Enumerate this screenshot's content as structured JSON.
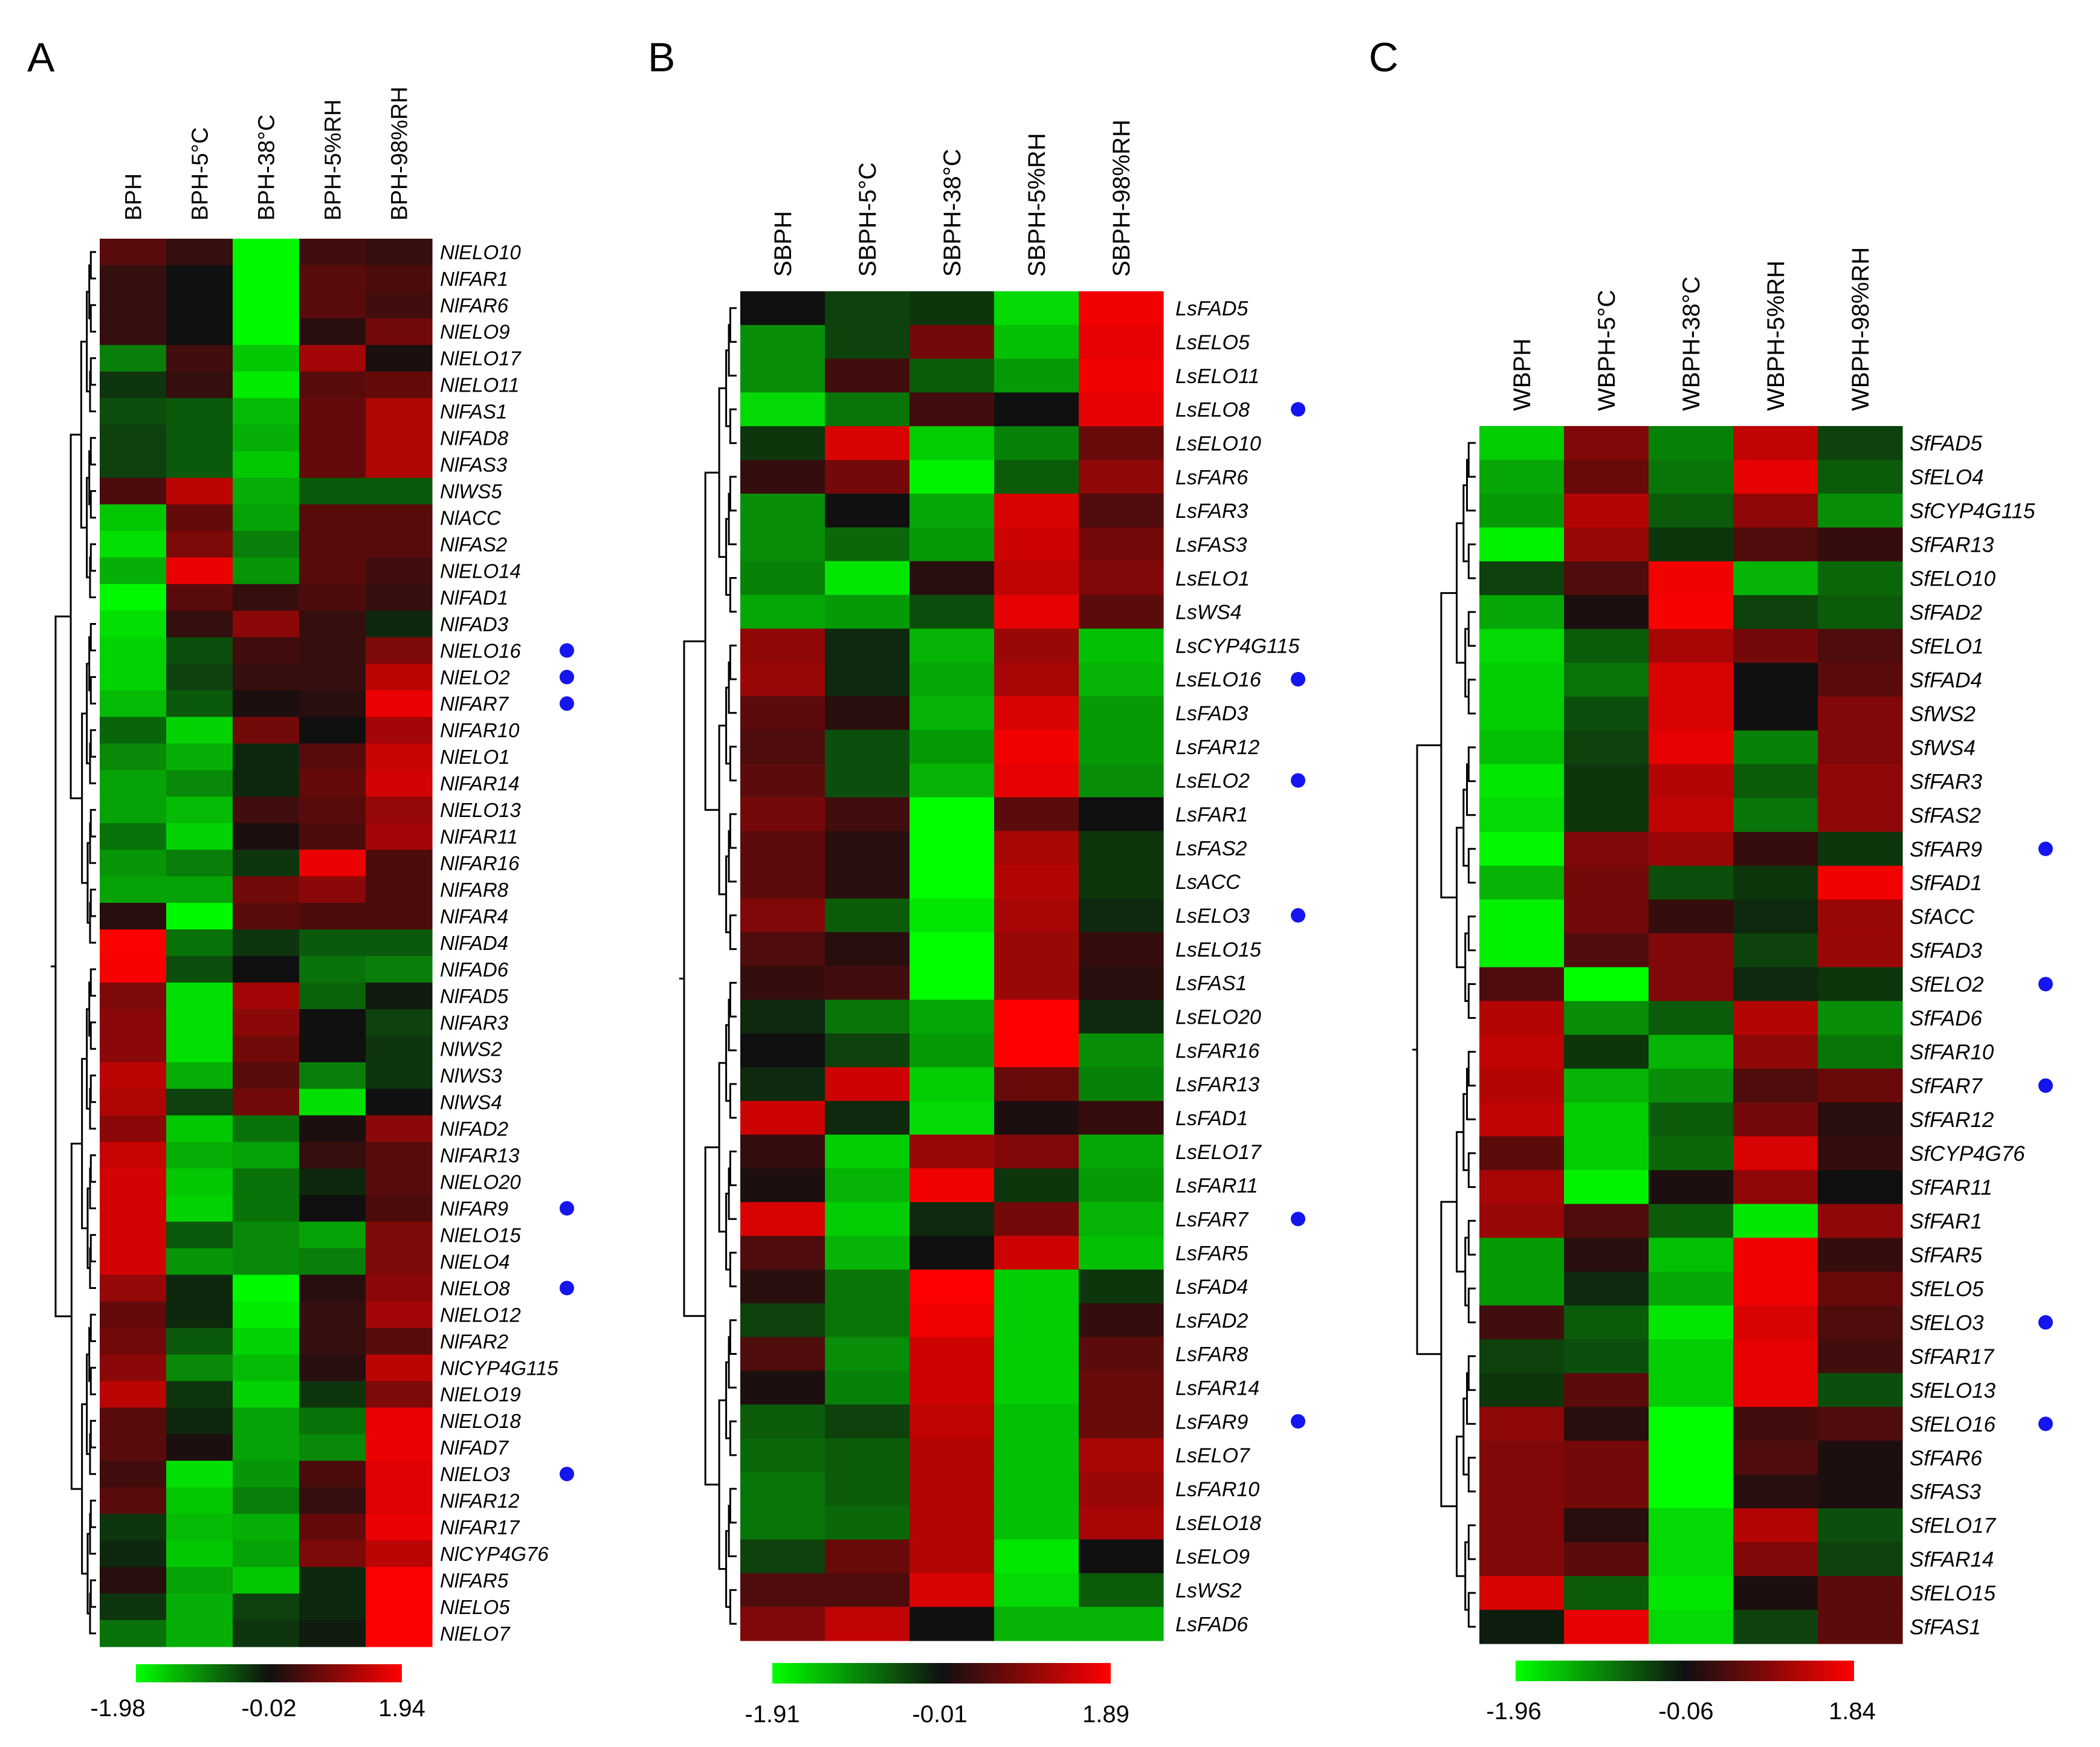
{
  "chart_data": [
    {
      "type": "heatmap",
      "panel": "A",
      "columns": [
        "BPH",
        "BPH-5°C",
        "BPH-38°C",
        "BPH-5%RH",
        "BPH-98%RH"
      ],
      "rows": [
        "NlELO10",
        "NlFAR1",
        "NlFAR6",
        "NlELO9",
        "NlELO17",
        "NlELO11",
        "NlFAS1",
        "NlFAD8",
        "NlFAS3",
        "NlWS5",
        "NlACC",
        "NlFAS2",
        "NlELO14",
        "NlFAD1",
        "NlFAD3",
        "NlELO16",
        "NlELO2",
        "NlFAR7",
        "NlFAR10",
        "NlELO1",
        "NlFAR14",
        "NlELO13",
        "NlFAR11",
        "NlFAR16",
        "NlFAR8",
        "NlFAR4",
        "NlFAD4",
        "NlFAD6",
        "NlFAD5",
        "NlFAR3",
        "NlWS2",
        "NlWS3",
        "NlWS4",
        "NlFAD2",
        "NlFAR13",
        "NlELO20",
        "NlFAR9",
        "NlELO15",
        "NlELO4",
        "NlELO8",
        "NlELO12",
        "NlFAR2",
        "NlCYP4G115",
        "NlELO19",
        "NlELO18",
        "NlFAD7",
        "NlELO3",
        "NlFAR12",
        "NlFAR17",
        "NlCYP4G76",
        "NlFAR5",
        "NlELO5",
        "NlELO7"
      ],
      "marked": [
        "NlELO16",
        "NlELO2",
        "NlFAR7",
        "NlFAR9",
        "NlELO8",
        "NlELO3"
      ],
      "values": [
        [
          0.6,
          0.3,
          -1.9,
          0.4,
          0.3
        ],
        [
          0.3,
          0.0,
          -1.9,
          0.6,
          0.5
        ],
        [
          0.3,
          0.0,
          -1.9,
          0.6,
          0.4
        ],
        [
          0.3,
          0.0,
          -1.9,
          0.2,
          0.8
        ],
        [
          -0.9,
          0.4,
          -1.5,
          1.2,
          0.1
        ],
        [
          -0.3,
          0.3,
          -1.8,
          0.6,
          0.7
        ],
        [
          -0.5,
          -0.6,
          -1.4,
          0.7,
          1.3
        ],
        [
          -0.4,
          -0.6,
          -1.3,
          0.7,
          1.3
        ],
        [
          -0.4,
          -0.6,
          -1.5,
          0.7,
          1.3
        ],
        [
          0.5,
          1.4,
          -1.3,
          -0.6,
          -0.6
        ],
        [
          -1.5,
          0.7,
          -1.2,
          0.6,
          0.6
        ],
        [
          -1.7,
          0.9,
          -0.9,
          0.6,
          0.6
        ],
        [
          -1.3,
          1.8,
          -1.1,
          0.6,
          0.4
        ],
        [
          -1.9,
          0.6,
          0.3,
          0.5,
          0.3
        ],
        [
          -1.7,
          0.3,
          1.0,
          0.3,
          -0.2
        ],
        [
          -1.6,
          -0.5,
          0.4,
          0.3,
          0.9
        ],
        [
          -1.6,
          -0.4,
          0.3,
          0.3,
          1.4
        ],
        [
          -1.4,
          -0.6,
          0.1,
          0.2,
          1.8
        ],
        [
          -0.7,
          -1.6,
          0.8,
          0.0,
          1.2
        ],
        [
          -1.0,
          -1.3,
          -0.2,
          0.6,
          1.5
        ],
        [
          -1.2,
          -1.0,
          -0.2,
          0.7,
          1.6
        ],
        [
          -1.2,
          -1.4,
          0.4,
          0.6,
          1.1
        ],
        [
          -0.8,
          -1.6,
          0.1,
          0.5,
          1.2
        ],
        [
          -1.1,
          -0.9,
          -0.3,
          1.8,
          0.5
        ],
        [
          -1.2,
          -1.2,
          0.8,
          1.0,
          0.5
        ],
        [
          0.2,
          -1.9,
          0.6,
          0.5,
          0.5
        ],
        [
          1.94,
          -0.8,
          -0.3,
          -0.6,
          -0.6
        ],
        [
          1.9,
          -0.5,
          0.0,
          -0.8,
          -0.9
        ],
        [
          0.9,
          -1.7,
          1.2,
          -0.7,
          -0.1
        ],
        [
          1.0,
          -1.7,
          1.0,
          0.0,
          -0.4
        ],
        [
          1.0,
          -1.7,
          0.8,
          0.0,
          -0.3
        ],
        [
          1.4,
          -1.3,
          0.6,
          -0.9,
          -0.3
        ],
        [
          1.3,
          -0.4,
          0.8,
          -1.7,
          0.0
        ],
        [
          1.0,
          -1.5,
          -0.8,
          0.1,
          1.0
        ],
        [
          1.5,
          -1.3,
          -1.2,
          0.3,
          0.6
        ],
        [
          1.6,
          -1.5,
          -0.8,
          -0.2,
          0.6
        ],
        [
          1.6,
          -1.6,
          -0.8,
          0.0,
          0.5
        ],
        [
          1.6,
          -0.6,
          -1.0,
          -1.2,
          0.9
        ],
        [
          1.6,
          -1.1,
          -1.0,
          -0.9,
          0.9
        ],
        [
          1.1,
          -0.2,
          -1.9,
          0.2,
          1.0
        ],
        [
          0.7,
          -0.2,
          -1.8,
          0.3,
          1.2
        ],
        [
          0.8,
          -0.6,
          -1.6,
          0.3,
          0.6
        ],
        [
          1.0,
          -1.0,
          -1.4,
          0.2,
          1.4
        ],
        [
          1.4,
          -0.3,
          -1.6,
          -0.3,
          0.9
        ],
        [
          0.6,
          -0.2,
          -1.2,
          -0.8,
          1.8
        ],
        [
          0.6,
          0.1,
          -1.2,
          -1.0,
          1.8
        ],
        [
          0.4,
          -1.7,
          -1.1,
          0.5,
          1.7
        ],
        [
          0.6,
          -1.5,
          -0.9,
          0.3,
          1.7
        ],
        [
          -0.3,
          -1.4,
          -1.3,
          0.7,
          1.8
        ],
        [
          -0.2,
          -1.5,
          -1.2,
          0.9,
          1.4
        ],
        [
          0.2,
          -1.2,
          -1.5,
          -0.2,
          1.94
        ],
        [
          -0.3,
          -1.3,
          -0.4,
          -0.2,
          1.94
        ],
        [
          -0.8,
          -1.3,
          -0.3,
          -0.1,
          1.94
        ]
      ],
      "legend": {
        "min": "-1.98",
        "mid": "-0.02",
        "max": "1.94"
      }
    },
    {
      "type": "heatmap",
      "panel": "B",
      "columns": [
        "SBPH",
        "SBPH-5°C",
        "SBPH-38°C",
        "SBPH-5%RH",
        "SBPH-98%RH"
      ],
      "rows": [
        "LsFAD5",
        "LsELO5",
        "LsELO11",
        "LsELO8",
        "LsELO10",
        "LsFAR6",
        "LsFAR3",
        "LsFAS3",
        "LsELO1",
        "LsWS4",
        "LsCYP4G115",
        "LsELO16",
        "LsFAD3",
        "LsFAR12",
        "LsELO2",
        "LsFAR1",
        "LsFAS2",
        "LsACC",
        "LsELO3",
        "LsELO15",
        "LsFAS1",
        "LsELO20",
        "LsFAR16",
        "LsFAR13",
        "LsFAD1",
        "LsELO17",
        "LsFAR11",
        "LsFAR7",
        "LsFAR5",
        "LsFAD4",
        "LsFAD2",
        "LsFAR8",
        "LsFAR14",
        "LsFAR9",
        "LsELO7",
        "LsFAR10",
        "LsELO18",
        "LsELO9",
        "LsWS2",
        "LsFAD6"
      ],
      "marked": [
        "LsELO8",
        "LsELO16",
        "LsELO2",
        "LsELO3",
        "LsFAR7",
        "LsFAR9"
      ],
      "values": [
        [
          0.0,
          -0.4,
          -0.3,
          -1.6,
          1.8
        ],
        [
          -1.0,
          -0.4,
          0.8,
          -1.4,
          1.7
        ],
        [
          -1.0,
          0.4,
          -0.6,
          -1.1,
          1.8
        ],
        [
          -1.6,
          -0.8,
          0.4,
          0.0,
          1.7
        ],
        [
          -0.3,
          1.6,
          -1.5,
          -0.9,
          0.7
        ],
        [
          0.3,
          0.8,
          -1.8,
          -0.6,
          1.0
        ],
        [
          -1.0,
          0.0,
          -1.2,
          1.6,
          0.5
        ],
        [
          -1.0,
          -0.7,
          -1.1,
          1.5,
          0.8
        ],
        [
          -0.9,
          -1.7,
          0.2,
          1.4,
          0.9
        ],
        [
          -1.2,
          -1.1,
          -0.5,
          1.7,
          0.6
        ],
        [
          1.0,
          -0.2,
          -1.3,
          1.1,
          -1.4
        ],
        [
          1.1,
          -0.2,
          -1.2,
          1.2,
          -1.3
        ],
        [
          0.6,
          0.2,
          -1.3,
          1.6,
          -1.1
        ],
        [
          0.5,
          -0.5,
          -1.1,
          1.8,
          -1.1
        ],
        [
          0.6,
          -0.5,
          -1.3,
          1.7,
          -1.0
        ],
        [
          0.8,
          0.4,
          -1.9,
          0.6,
          0.0
        ],
        [
          0.6,
          0.2,
          -1.9,
          1.2,
          -0.3
        ],
        [
          0.6,
          0.2,
          -1.9,
          1.3,
          -0.3
        ],
        [
          0.9,
          -0.6,
          -1.7,
          1.2,
          -0.2
        ],
        [
          0.5,
          0.2,
          -1.9,
          1.1,
          0.3
        ],
        [
          0.3,
          0.4,
          -1.9,
          1.1,
          0.2
        ],
        [
          -0.2,
          -0.8,
          -1.2,
          1.89,
          -0.2
        ],
        [
          0.0,
          -0.4,
          -1.1,
          1.89,
          -1.0
        ],
        [
          -0.2,
          1.5,
          -1.5,
          0.7,
          -0.9
        ],
        [
          1.5,
          -0.2,
          -1.6,
          0.1,
          0.3
        ],
        [
          0.3,
          -1.5,
          1.1,
          0.9,
          -1.2
        ],
        [
          0.1,
          -1.3,
          1.8,
          -0.3,
          -1.1
        ],
        [
          1.6,
          -1.5,
          -0.2,
          0.8,
          -1.3
        ],
        [
          0.5,
          -1.3,
          0.0,
          1.5,
          -1.4
        ],
        [
          0.2,
          -0.8,
          1.89,
          -1.5,
          -0.3
        ],
        [
          -0.4,
          -0.8,
          1.8,
          -1.5,
          0.3
        ],
        [
          0.5,
          -1.0,
          1.5,
          -1.5,
          0.6
        ],
        [
          0.1,
          -0.9,
          1.5,
          -1.5,
          0.7
        ],
        [
          -0.6,
          -0.4,
          1.4,
          -1.4,
          0.7
        ],
        [
          -0.7,
          -0.6,
          1.3,
          -1.4,
          1.2
        ],
        [
          -0.8,
          -0.6,
          1.3,
          -1.4,
          1.1
        ],
        [
          -0.8,
          -0.7,
          1.3,
          -1.4,
          1.2
        ],
        [
          -0.4,
          0.7,
          1.3,
          -1.7,
          0.0
        ],
        [
          0.5,
          0.5,
          1.6,
          -1.6,
          -0.6
        ],
        [
          0.9,
          1.4,
          0.0,
          -1.3,
          -1.3
        ]
      ],
      "legend": {
        "min": "-1.91",
        "mid": "-0.01",
        "max": "1.89"
      }
    },
    {
      "type": "heatmap",
      "panel": "C",
      "columns": [
        "WBPH",
        "WBPH-5°C",
        "WBPH-38°C",
        "WBPH-5%RH",
        "WBPH-98%RH"
      ],
      "rows": [
        "SfFAD5",
        "SfELO4",
        "SfCYP4G115",
        "SfFAR13",
        "SfELO10",
        "SfFAD2",
        "SfELO1",
        "SfFAD4",
        "SfWS2",
        "SfWS4",
        "SfFAR3",
        "SfFAS2",
        "SfFAR9",
        "SfFAD1",
        "SfACC",
        "SfFAD3",
        "SfELO2",
        "SfFAD6",
        "SfFAR10",
        "SfFAR7",
        "SfFAR12",
        "SfCYP4G76",
        "SfFAR11",
        "SfFAR1",
        "SfFAR5",
        "SfELO5",
        "SfELO3",
        "SfFAR17",
        "SfELO13",
        "SfELO16",
        "SfFAR6",
        "SfFAS3",
        "SfELO17",
        "SfFAR14",
        "SfELO15",
        "SfFAS1"
      ],
      "marked": [
        "SfFAR9",
        "SfELO2",
        "SfFAR7",
        "SfELO3",
        "SfELO16"
      ],
      "values": [
        [
          -1.5,
          0.9,
          -0.9,
          1.4,
          -0.4
        ],
        [
          -1.2,
          0.7,
          -0.8,
          1.7,
          -0.6
        ],
        [
          -1.1,
          1.3,
          -0.6,
          1.0,
          -1.0
        ],
        [
          -1.8,
          1.1,
          -0.3,
          0.5,
          0.3
        ],
        [
          -0.4,
          0.5,
          1.8,
          -1.3,
          -0.7
        ],
        [
          -1.2,
          0.1,
          1.84,
          -0.4,
          -0.6
        ],
        [
          -1.6,
          -0.6,
          1.2,
          0.8,
          0.5
        ],
        [
          -1.5,
          -0.8,
          1.6,
          0.0,
          0.6
        ],
        [
          -1.5,
          -0.5,
          1.6,
          0.0,
          0.9
        ],
        [
          -1.4,
          -0.4,
          1.7,
          -0.9,
          0.9
        ],
        [
          -1.7,
          -0.3,
          1.3,
          -0.6,
          1.0
        ],
        [
          -1.6,
          -0.3,
          1.4,
          -0.8,
          1.0
        ],
        [
          -1.84,
          0.9,
          1.1,
          0.3,
          -0.3
        ],
        [
          -1.3,
          0.8,
          -0.5,
          -0.3,
          1.8
        ],
        [
          -1.8,
          0.8,
          0.3,
          -0.2,
          1.1
        ],
        [
          -1.8,
          0.5,
          0.9,
          -0.4,
          1.1
        ],
        [
          0.5,
          -1.9,
          0.9,
          -0.2,
          -0.3
        ],
        [
          1.3,
          -1.0,
          -0.6,
          1.3,
          -1.0
        ],
        [
          1.4,
          -0.3,
          -1.3,
          1.0,
          -0.8
        ],
        [
          1.3,
          -1.3,
          -1.0,
          0.5,
          0.7
        ],
        [
          1.4,
          -1.5,
          -0.6,
          0.8,
          0.2
        ],
        [
          0.6,
          -1.5,
          -0.7,
          1.6,
          0.3
        ],
        [
          1.2,
          -1.8,
          0.1,
          1.0,
          0.0
        ],
        [
          1.1,
          0.5,
          -0.6,
          -1.7,
          1.0
        ],
        [
          -1.1,
          0.2,
          -1.4,
          1.8,
          0.3
        ],
        [
          -1.1,
          -0.2,
          -1.2,
          1.8,
          0.7
        ],
        [
          0.4,
          -0.6,
          -1.7,
          1.6,
          0.5
        ],
        [
          -0.4,
          -0.5,
          -1.5,
          1.7,
          0.4
        ],
        [
          -0.3,
          0.6,
          -1.5,
          1.7,
          -0.5
        ],
        [
          1.0,
          0.2,
          -1.96,
          0.4,
          0.5
        ],
        [
          0.9,
          0.8,
          -1.96,
          0.5,
          0.1
        ],
        [
          0.9,
          0.8,
          -1.96,
          0.2,
          0.1
        ],
        [
          0.9,
          0.2,
          -1.6,
          1.3,
          -0.5
        ],
        [
          0.9,
          0.6,
          -1.6,
          0.9,
          -0.4
        ],
        [
          1.6,
          -0.6,
          -1.7,
          0.1,
          0.6
        ],
        [
          -0.1,
          1.7,
          -1.6,
          -0.4,
          0.6
        ]
      ],
      "legend": {
        "min": "-1.96",
        "mid": "-0.06",
        "max": "1.84"
      }
    }
  ]
}
